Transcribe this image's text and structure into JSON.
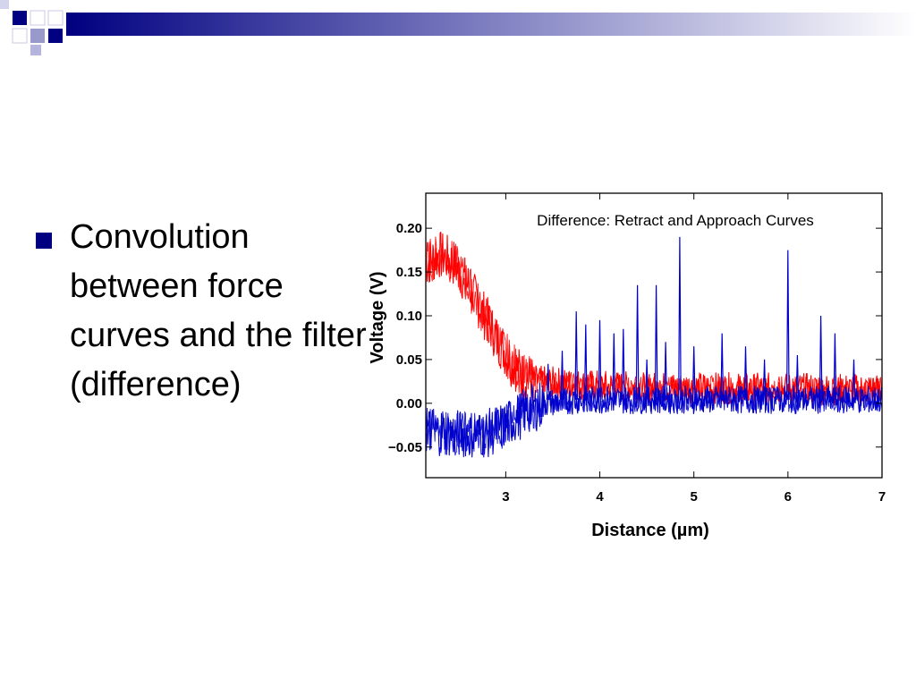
{
  "slide": {
    "bullet_text": "Convolution between force curves and the filter (difference)",
    "header_colors": {
      "dark": "#000080",
      "light": "#8888cc",
      "fade": "#ffffff"
    }
  },
  "chart_data": {
    "type": "line",
    "title": "Difference: Retract and Approach Curves",
    "xlabel": "Distance (µm)",
    "ylabel": "Voltage (V)",
    "xlim": [
      2.15,
      7.0
    ],
    "ylim": [
      -0.085,
      0.24
    ],
    "x_ticks": [
      3,
      4,
      5,
      6,
      7
    ],
    "x_tick_labels": [
      "3",
      "4",
      "5",
      "6",
      "7"
    ],
    "y_ticks": [
      -0.05,
      0.0,
      0.05,
      0.1,
      0.15,
      0.2
    ],
    "y_tick_labels": [
      "−0.05",
      "0.00",
      "0.05",
      "0.10",
      "0.15",
      "0.20"
    ],
    "grid": false,
    "legend": "none",
    "series": [
      {
        "color": "#ff0000",
        "x": [
          2.15,
          2.3,
          2.45,
          2.6,
          2.75,
          2.9,
          3.05,
          3.2,
          3.35,
          3.5,
          3.7,
          4.0,
          4.5,
          5.0,
          5.5,
          6.0,
          6.5,
          7.0
        ],
        "y": [
          0.16,
          0.17,
          0.16,
          0.135,
          0.105,
          0.075,
          0.048,
          0.03,
          0.025,
          0.024,
          0.022,
          0.02,
          0.018,
          0.018,
          0.017,
          0.017,
          0.016,
          0.016
        ]
      },
      {
        "color": "#0000cc",
        "x": [
          2.15,
          2.5,
          2.8,
          3.0,
          3.2,
          3.4,
          3.6,
          3.8,
          4.0,
          4.5,
          5.0,
          5.5,
          6.0,
          6.5,
          7.0
        ],
        "y": [
          -0.03,
          -0.035,
          -0.035,
          -0.025,
          -0.01,
          0.0,
          0.002,
          0.004,
          0.004,
          0.004,
          0.004,
          0.004,
          0.004,
          0.004,
          0.004
        ]
      }
    ],
    "spikes": {
      "x": [
        3.45,
        3.6,
        3.75,
        3.85,
        4.0,
        4.15,
        4.25,
        4.4,
        4.5,
        4.6,
        4.7,
        4.85,
        5.0,
        5.3,
        5.55,
        5.75,
        6.0,
        6.1,
        6.35,
        6.5,
        6.7
      ],
      "y": [
        0.045,
        0.06,
        0.105,
        0.09,
        0.095,
        0.08,
        0.085,
        0.135,
        0.05,
        0.135,
        0.07,
        0.19,
        0.065,
        0.08,
        0.065,
        0.05,
        0.175,
        0.055,
        0.1,
        0.08,
        0.05
      ]
    }
  }
}
